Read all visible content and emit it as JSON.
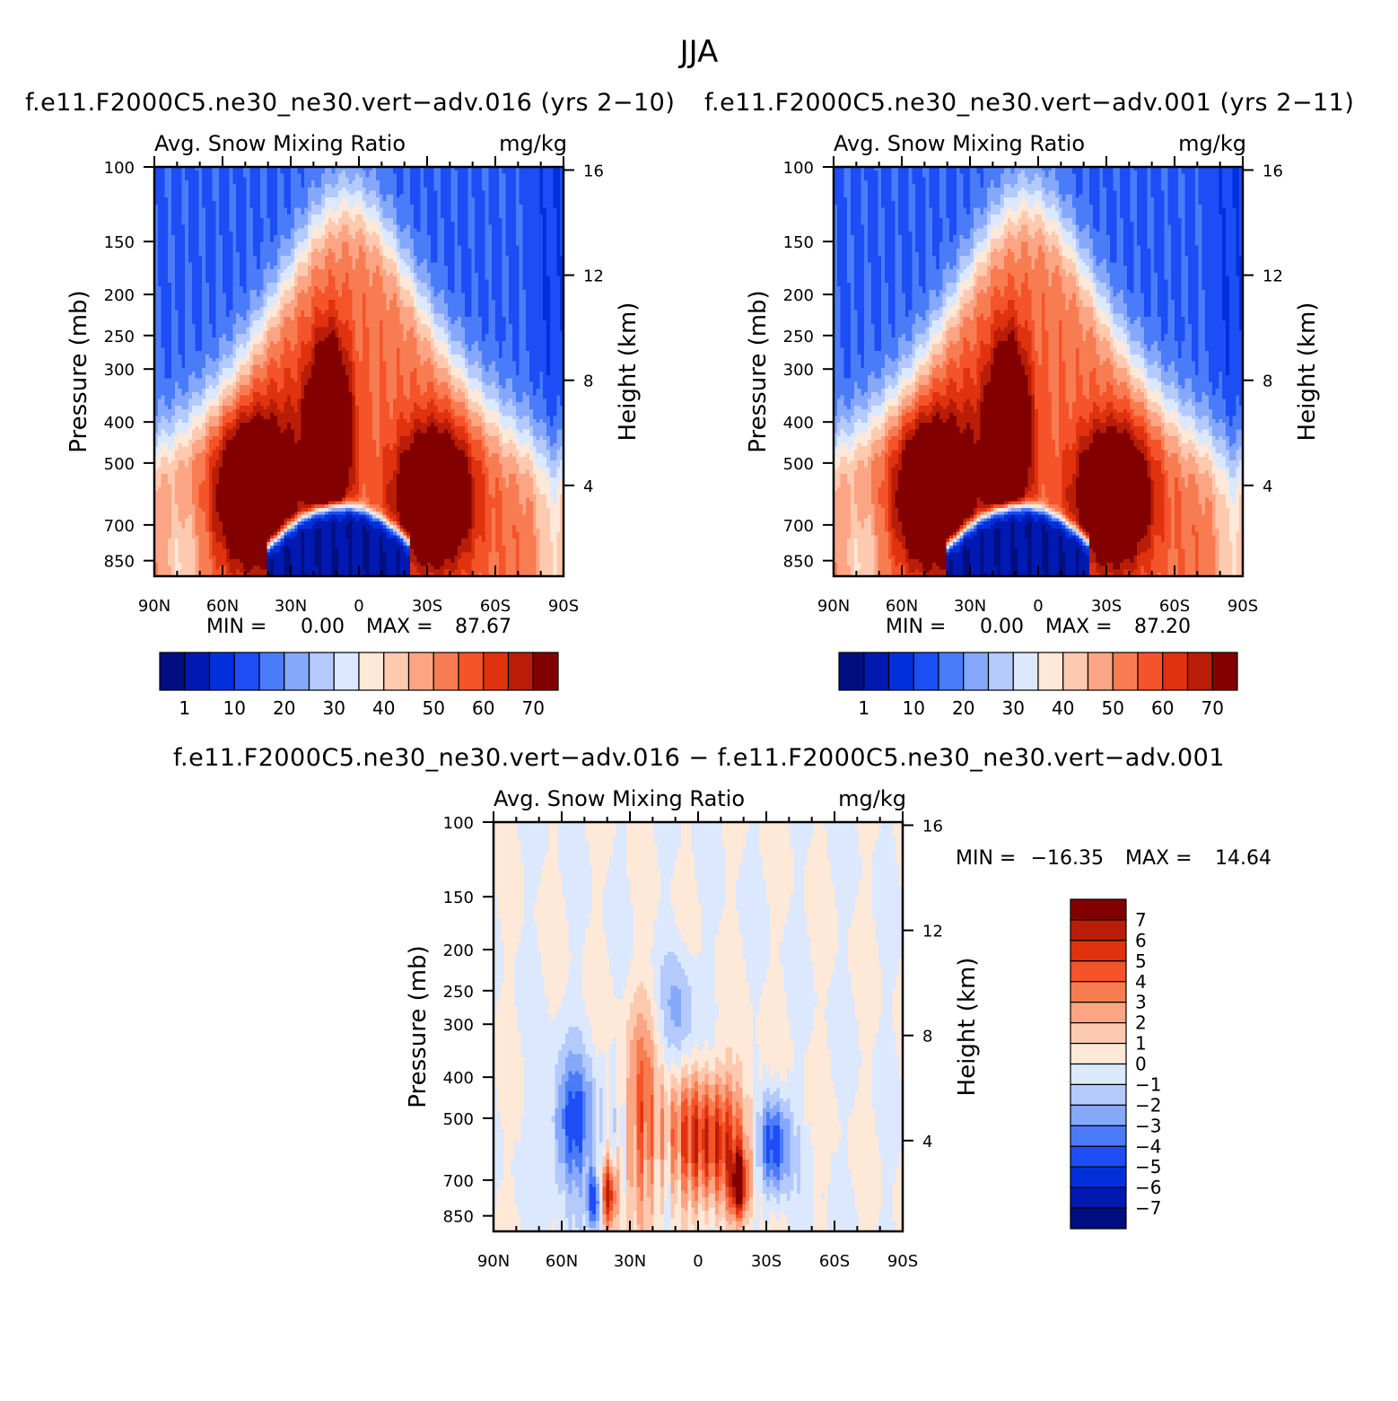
{
  "figure": {
    "season": "JJA",
    "colors": {
      "abs_levels": [
        "#000e7f",
        "#0019b0",
        "#0030dc",
        "#1d4df5",
        "#4a7cf9",
        "#86a8fb",
        "#b5cafc",
        "#dce8fe",
        "#fee8d8",
        "#fdcab0",
        "#fba584",
        "#f87c52",
        "#f5532a",
        "#e0320e",
        "#b91d07",
        "#820000"
      ],
      "diff_levels": [
        "#000e7f",
        "#0019b0",
        "#0030dc",
        "#1d4df5",
        "#4a7cf9",
        "#86a8fb",
        "#b5cafc",
        "#dce8fe",
        "#fee8d8",
        "#fdcab0",
        "#fba584",
        "#f87c52",
        "#f5532a",
        "#e0320e",
        "#b91d07",
        "#820000"
      ]
    }
  },
  "chart_data": [
    {
      "type": "heatmap",
      "title": "f.e11.F2000C5.ne30_ne30.vert−adv.016 (yrs 2−10)",
      "variable": "Avg. Snow Mixing Ratio",
      "units": "mg/kg",
      "xlabel": "",
      "ylabel": "Pressure (mb)",
      "ylabel_right": "Height (km)",
      "x_ticks": [
        "90N",
        "60N",
        "30N",
        "0",
        "30S",
        "60S",
        "90S"
      ],
      "y_ticks": [
        "100",
        "150",
        "200",
        "250",
        "300",
        "400",
        "500",
        "700",
        "850"
      ],
      "y_ticks_right": [
        "16",
        "12",
        "8",
        "4"
      ],
      "y_scale": "log",
      "min_label": "MIN =",
      "min_value": "0.00",
      "max_label": "MAX =",
      "max_value": "87.67",
      "colorbar_labels": [
        "1",
        "10",
        "20",
        "30",
        "40",
        "50",
        "60",
        "70"
      ],
      "colorbar_orientation": "horizontal"
    },
    {
      "type": "heatmap",
      "title": "f.e11.F2000C5.ne30_ne30.vert−adv.001 (yrs 2−11)",
      "variable": "Avg. Snow Mixing Ratio",
      "units": "mg/kg",
      "xlabel": "",
      "ylabel": "Pressure (mb)",
      "ylabel_right": "Height (km)",
      "x_ticks": [
        "90N",
        "60N",
        "30N",
        "0",
        "30S",
        "60S",
        "90S"
      ],
      "y_ticks": [
        "100",
        "150",
        "200",
        "250",
        "300",
        "400",
        "500",
        "700",
        "850"
      ],
      "y_ticks_right": [
        "16",
        "12",
        "8",
        "4"
      ],
      "y_scale": "log",
      "min_label": "MIN =",
      "min_value": "0.00",
      "max_label": "MAX =",
      "max_value": "87.20",
      "colorbar_labels": [
        "1",
        "10",
        "20",
        "30",
        "40",
        "50",
        "60",
        "70"
      ],
      "colorbar_orientation": "horizontal"
    },
    {
      "type": "heatmap",
      "title": "f.e11.F2000C5.ne30_ne30.vert−adv.016 − f.e11.F2000C5.ne30_ne30.vert−adv.001",
      "variable": "Avg. Snow Mixing Ratio",
      "units": "mg/kg",
      "xlabel": "",
      "ylabel": "Pressure (mb)",
      "ylabel_right": "Height (km)",
      "x_ticks": [
        "90N",
        "60N",
        "30N",
        "0",
        "30S",
        "60S",
        "90S"
      ],
      "y_ticks": [
        "100",
        "150",
        "200",
        "250",
        "300",
        "400",
        "500",
        "700",
        "850"
      ],
      "y_ticks_right": [
        "16",
        "12",
        "8",
        "4"
      ],
      "y_scale": "log",
      "min_label": "MIN =",
      "min_value": "−16.35",
      "max_label": "MAX =",
      "max_value": "14.64",
      "colorbar_labels": [
        "7",
        "6",
        "5",
        "4",
        "3",
        "2",
        "1",
        "0",
        "−1",
        "−2",
        "−3",
        "−4",
        "−5",
        "−6",
        "−7"
      ],
      "colorbar_orientation": "vertical"
    }
  ]
}
